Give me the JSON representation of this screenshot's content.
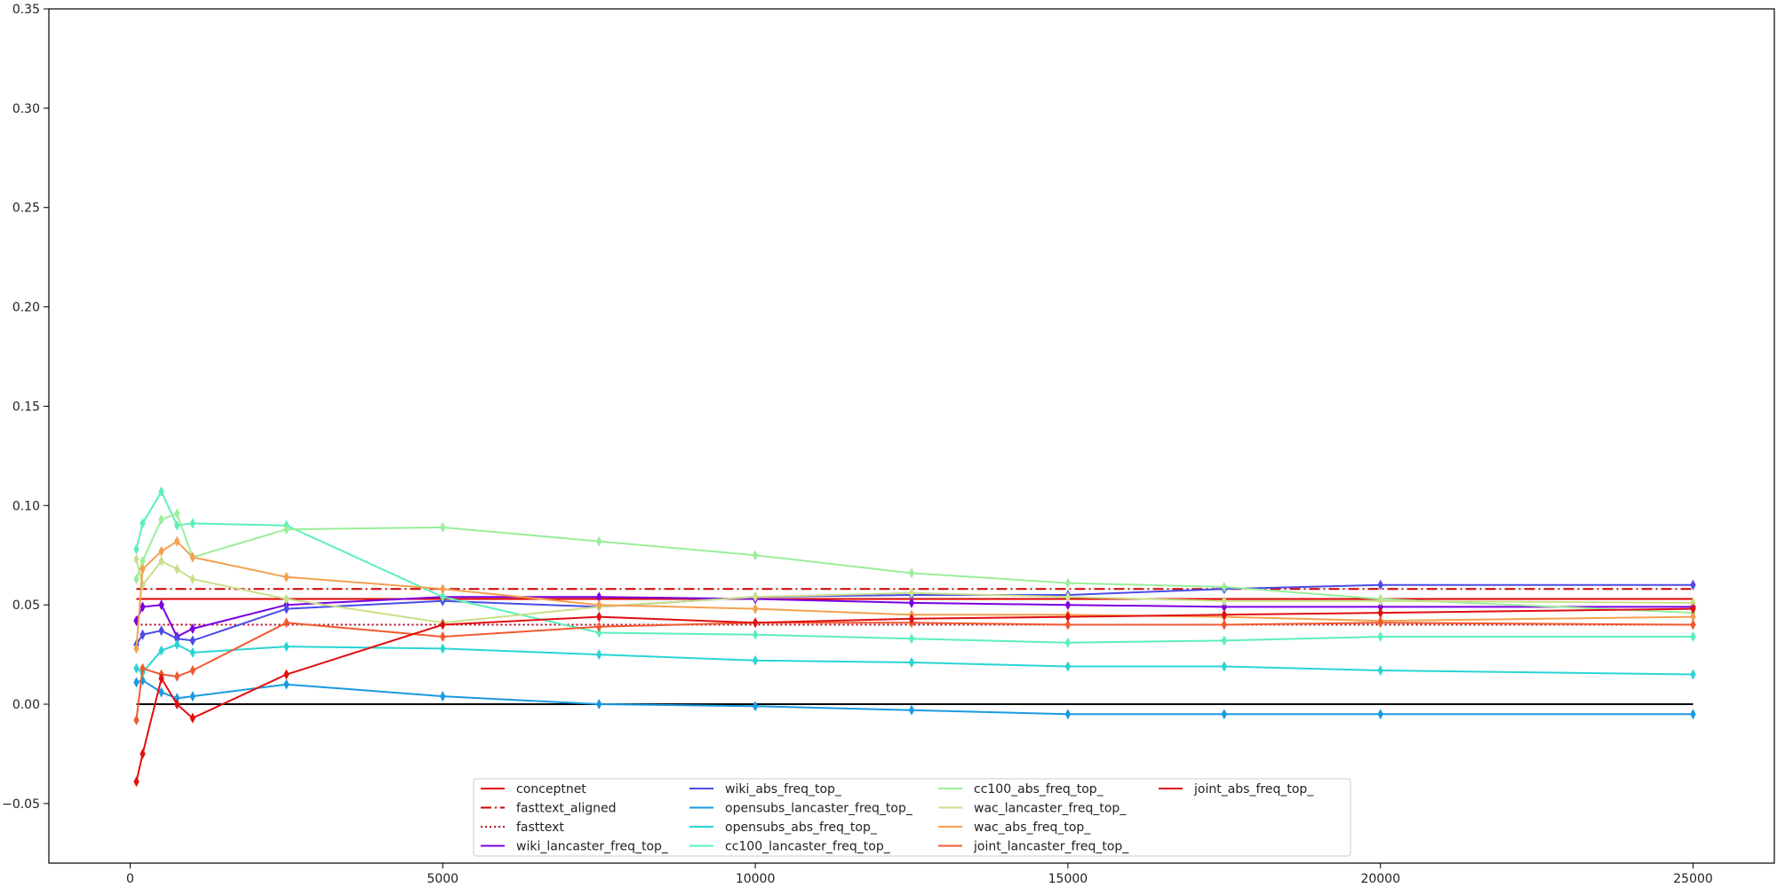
{
  "chart_data": {
    "type": "line",
    "title": "",
    "xlabel": "",
    "ylabel": "",
    "xlim": [
      -1300,
      26300
    ],
    "ylim": [
      -0.08,
      0.35
    ],
    "x_ticks": [
      0,
      5000,
      10000,
      15000,
      20000,
      25000
    ],
    "x_tick_labels": [
      "0",
      "5000",
      "10000",
      "15000",
      "20000",
      "25000"
    ],
    "y_ticks": [
      -0.05,
      0.0,
      0.05,
      0.1,
      0.15,
      0.2,
      0.25,
      0.3,
      0.35
    ],
    "y_tick_labels": [
      "−0.05",
      "0.00",
      "0.05",
      "0.10",
      "0.15",
      "0.20",
      "0.25",
      "0.30",
      "0.35"
    ],
    "grid": false,
    "legend_position": "bottom-center",
    "x": [
      100,
      200,
      500,
      750,
      1000,
      2500,
      5000,
      7500,
      10000,
      12500,
      15000,
      17500,
      20000,
      25000
    ],
    "reference_lines": [
      {
        "name": "conceptnet",
        "value": 0.053,
        "color": "#e00000",
        "style": "solid"
      },
      {
        "name": "fasttext_aligned",
        "value": 0.058,
        "color": "#cc0000",
        "style": "dashdot"
      },
      {
        "name": "fasttext",
        "value": 0.04,
        "color": "#b00020",
        "style": "dotted"
      }
    ],
    "zero_line": {
      "value": 0.0,
      "color": "#000000"
    },
    "series": [
      {
        "name": "wiki_lancaster_freq_top_",
        "color": "#7b00e0",
        "values": [
          0.042,
          0.049,
          0.05,
          0.034,
          0.038,
          0.05,
          0.054,
          0.054,
          0.053,
          0.051,
          0.05,
          0.049,
          0.049,
          0.049
        ]
      },
      {
        "name": "wiki_abs_freq_top_",
        "color": "#4b4be8",
        "values": [
          0.03,
          0.035,
          0.037,
          0.033,
          0.032,
          0.048,
          0.052,
          0.049,
          0.054,
          0.055,
          0.055,
          0.058,
          0.06,
          0.06
        ]
      },
      {
        "name": "opensubs_lancaster_freq_top_",
        "color": "#1a9ae0",
        "values": [
          0.011,
          0.012,
          0.006,
          0.003,
          0.004,
          0.01,
          0.004,
          0.0,
          -0.001,
          -0.003,
          -0.005,
          -0.005,
          -0.005,
          -0.005
        ]
      },
      {
        "name": "opensubs_abs_freq_top_",
        "color": "#2ad4d4",
        "values": [
          0.018,
          0.016,
          0.027,
          0.03,
          0.026,
          0.029,
          0.028,
          0.025,
          0.022,
          0.021,
          0.019,
          0.019,
          0.017,
          0.015
        ]
      },
      {
        "name": "cc100_lancaster_freq_top_",
        "color": "#5cf0b8",
        "values": [
          0.078,
          0.091,
          0.107,
          0.09,
          0.091,
          0.09,
          0.054,
          0.036,
          0.035,
          0.033,
          0.031,
          0.032,
          0.034,
          0.034
        ]
      },
      {
        "name": "cc100_abs_freq_top_",
        "color": "#9aee9a",
        "values": [
          0.063,
          0.072,
          0.093,
          0.096,
          0.074,
          0.088,
          0.089,
          0.082,
          0.075,
          0.066,
          0.061,
          0.059,
          0.053,
          0.046
        ]
      },
      {
        "name": "wac_lancaster_freq_top_",
        "color": "#c8e08a",
        "values": [
          0.073,
          0.06,
          0.072,
          0.068,
          0.063,
          0.053,
          0.041,
          0.049,
          0.054,
          0.056,
          0.054,
          0.052,
          0.052,
          0.051
        ]
      },
      {
        "name": "wac_abs_freq_top_",
        "color": "#f4a050",
        "values": [
          0.028,
          0.068,
          0.077,
          0.082,
          0.074,
          0.064,
          0.058,
          0.05,
          0.048,
          0.045,
          0.045,
          0.044,
          0.042,
          0.044
        ]
      },
      {
        "name": "joint_lancaster_freq_top_",
        "color": "#f05a30",
        "values": [
          -0.008,
          0.018,
          0.015,
          0.014,
          0.017,
          0.041,
          0.034,
          0.039,
          0.041,
          0.041,
          0.04,
          0.04,
          0.041,
          0.04
        ]
      },
      {
        "name": "joint_abs_freq_top_",
        "color": "#e01010",
        "values": [
          -0.039,
          -0.025,
          0.013,
          -0.0,
          -0.007,
          0.015,
          0.04,
          0.044,
          0.041,
          0.043,
          0.044,
          0.045,
          0.046,
          0.048
        ]
      }
    ],
    "legend_order": [
      "conceptnet",
      "fasttext_aligned",
      "fasttext",
      "wiki_lancaster_freq_top_",
      "wiki_abs_freq_top_",
      "opensubs_lancaster_freq_top_",
      "opensubs_abs_freq_top_",
      "cc100_lancaster_freq_top_",
      "cc100_abs_freq_top_",
      "wac_lancaster_freq_top_",
      "wac_abs_freq_top_",
      "joint_lancaster_freq_top_",
      "joint_abs_freq_top_"
    ]
  }
}
